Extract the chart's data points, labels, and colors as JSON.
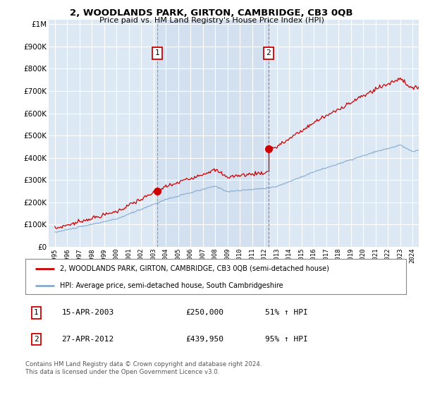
{
  "title1": "2, WOODLANDS PARK, GIRTON, CAMBRIDGE, CB3 0QB",
  "title2": "Price paid vs. HM Land Registry's House Price Index (HPI)",
  "ytick_values": [
    0,
    100000,
    200000,
    300000,
    400000,
    500000,
    600000,
    700000,
    800000,
    900000,
    1000000
  ],
  "ylim": [
    0,
    1020000
  ],
  "xlim_start": 1994.5,
  "xlim_end": 2024.5,
  "background_color": "#dce9f5",
  "grid_color": "#ffffff",
  "red_line_color": "#cc0000",
  "blue_line_color": "#88aacc",
  "sale1_year": 2003.29,
  "sale1_price": 250000,
  "sale2_year": 2012.32,
  "sale2_price": 439950,
  "legend_line1": "2, WOODLANDS PARK, GIRTON, CAMBRIDGE, CB3 0QB (semi-detached house)",
  "legend_line2": "HPI: Average price, semi-detached house, South Cambridgeshire",
  "footnote": "Contains HM Land Registry data © Crown copyright and database right 2024.\nThis data is licensed under the Open Government Licence v3.0."
}
